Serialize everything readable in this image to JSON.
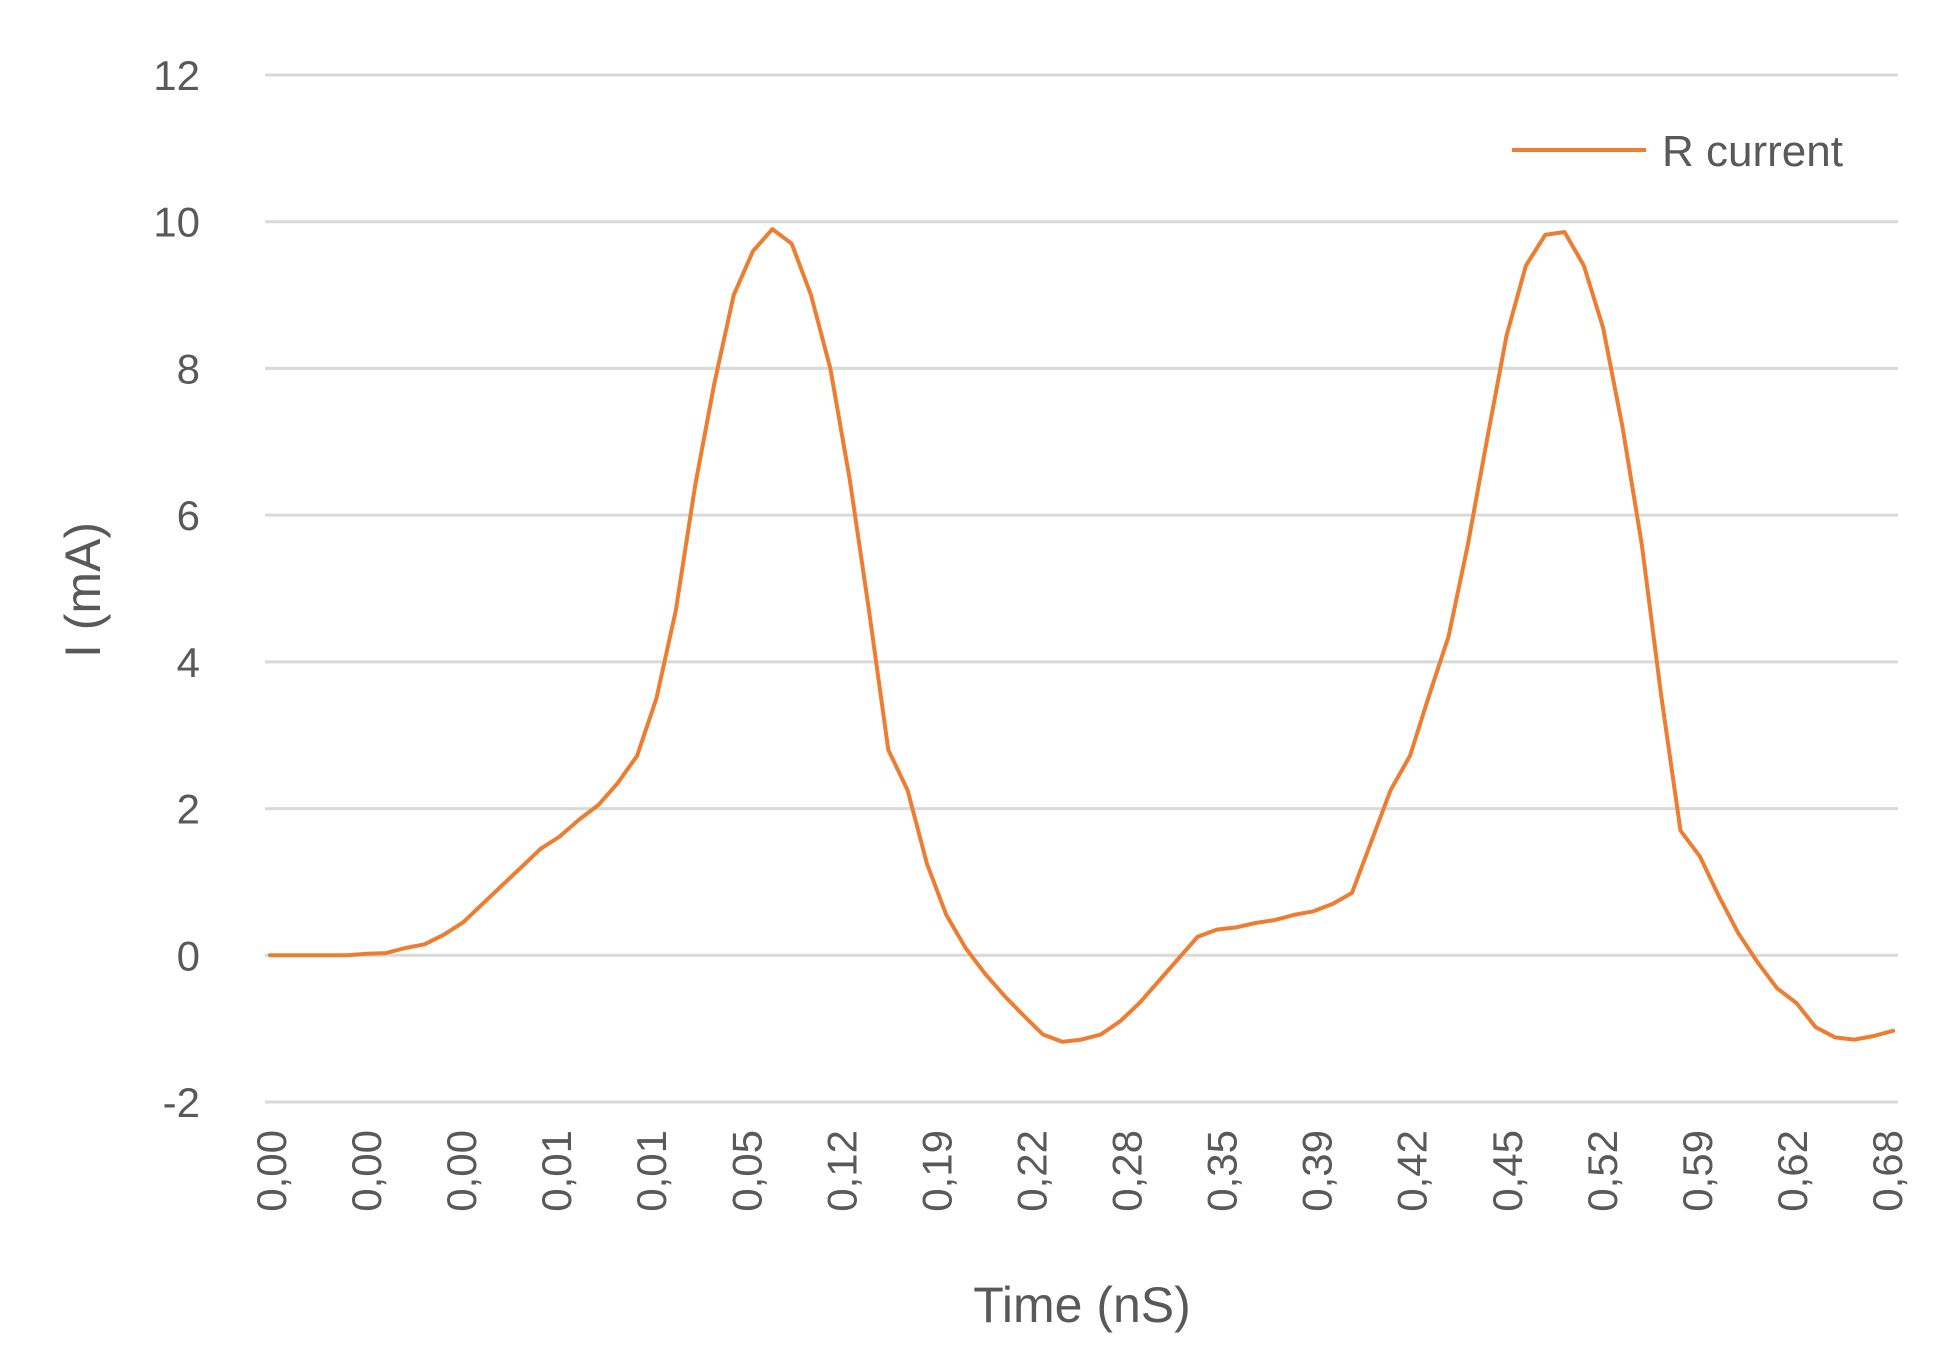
{
  "chart_data": {
    "type": "line",
    "title": "",
    "xlabel": "Time (nS)",
    "ylabel": "I (mA)",
    "ylim": [
      -2,
      12
    ],
    "yticks": [
      -2,
      0,
      2,
      4,
      6,
      8,
      10,
      12
    ],
    "grid": true,
    "legend_position": "top-right",
    "x_tick_labels": [
      "0,00",
      "0,00",
      "0,00",
      "0,01",
      "0,01",
      "0,05",
      "0,12",
      "0,19",
      "0,22",
      "0,28",
      "0,35",
      "0,39",
      "0,42",
      "0,45",
      "0,52",
      "0,59",
      "0,62",
      "0,68"
    ],
    "series": [
      {
        "name": "R current",
        "color": "#ed7d31",
        "values": [
          0,
          0,
          0,
          0,
          0,
          0.02,
          0.03,
          0.1,
          0.15,
          0.28,
          0.45,
          0.7,
          0.95,
          1.2,
          1.45,
          1.62,
          1.85,
          2.05,
          2.35,
          2.72,
          3.5,
          4.7,
          6.4,
          7.8,
          9.0,
          9.6,
          9.9,
          9.7,
          9.0,
          8.0,
          6.5,
          4.7,
          2.8,
          2.25,
          1.25,
          0.55,
          0.1,
          -0.25,
          -0.55,
          -0.82,
          -1.08,
          -1.18,
          -1.15,
          -1.08,
          -0.9,
          -0.65,
          -0.35,
          -0.05,
          0.25,
          0.35,
          0.38,
          0.44,
          0.48,
          0.55,
          0.6,
          0.7,
          0.85,
          1.55,
          2.25,
          2.72,
          3.55,
          4.35,
          5.6,
          7.05,
          8.45,
          9.4,
          9.82,
          9.86,
          9.4,
          8.55,
          7.2,
          5.6,
          3.55,
          1.7,
          1.35,
          0.8,
          0.3,
          -0.1,
          -0.45,
          -0.65,
          -0.98,
          -1.12,
          -1.15,
          -1.1,
          -1.03
        ]
      }
    ]
  }
}
